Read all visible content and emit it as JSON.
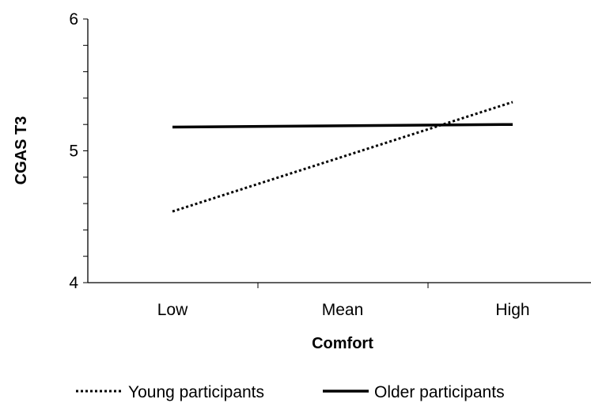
{
  "chart_data": {
    "type": "line",
    "categories": [
      "Low",
      "Mean",
      "High"
    ],
    "xlabel": "Comfort",
    "ylabel": "CGAS T3",
    "ylim": [
      4,
      6
    ],
    "yticks": [
      4,
      5,
      6
    ],
    "grid": false,
    "legend_position": "bottom",
    "series": [
      {
        "name": "Young participants",
        "style": "dotted",
        "color": "#000000",
        "values": [
          4.54,
          null,
          5.37
        ]
      },
      {
        "name": "Older participants",
        "style": "solid",
        "color": "#000000",
        "values": [
          5.18,
          null,
          5.2
        ]
      }
    ]
  }
}
